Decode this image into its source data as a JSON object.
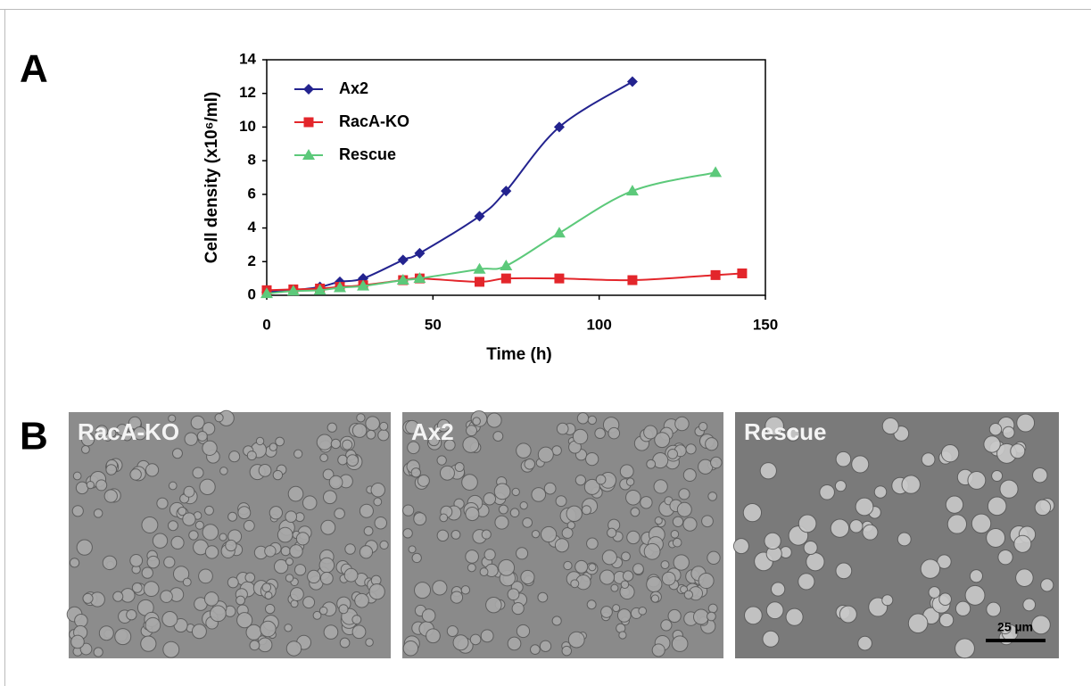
{
  "chart_data": {
    "type": "line",
    "y_label": "Cell density (x10⁶/ml)",
    "x_label": "Time (h)",
    "xlim": [
      0,
      150
    ],
    "xticks": [
      0,
      50,
      100,
      150
    ],
    "ylim": [
      0,
      14
    ],
    "yticks": [
      0,
      2,
      4,
      6,
      8,
      10,
      12,
      14
    ],
    "legend": "upper-left",
    "series": [
      {
        "name": "Ax2",
        "color": "#23238f",
        "marker": "diamond",
        "x": [
          0,
          8,
          16,
          22,
          29,
          41,
          46,
          64,
          72,
          88,
          110
        ],
        "values": [
          0.2,
          0.3,
          0.5,
          0.8,
          1.0,
          2.1,
          2.5,
          4.7,
          6.2,
          10.0,
          12.7
        ]
      },
      {
        "name": "RacA-KO",
        "color": "#e3262b",
        "marker": "square",
        "x": [
          0,
          8,
          16,
          22,
          29,
          41,
          46,
          64,
          72,
          88,
          110,
          135,
          143
        ],
        "values": [
          0.3,
          0.35,
          0.4,
          0.5,
          0.6,
          0.9,
          1.0,
          0.8,
          1.0,
          1.0,
          0.9,
          1.2,
          1.3
        ]
      },
      {
        "name": "Rescue",
        "color": "#5cc97a",
        "marker": "triangle",
        "x": [
          0,
          8,
          16,
          22,
          29,
          41,
          46,
          64,
          72,
          88,
          110,
          135
        ],
        "values": [
          0.1,
          0.25,
          0.3,
          0.45,
          0.55,
          0.9,
          1.0,
          1.55,
          1.75,
          3.7,
          6.2,
          7.3
        ]
      }
    ]
  },
  "figure": {
    "panel_labels": [
      "A",
      "B"
    ],
    "images": [
      {
        "label": "RacA-KO"
      },
      {
        "label": "Ax2"
      },
      {
        "label": "Rescue",
        "scale_bar": "25 µm"
      }
    ]
  }
}
